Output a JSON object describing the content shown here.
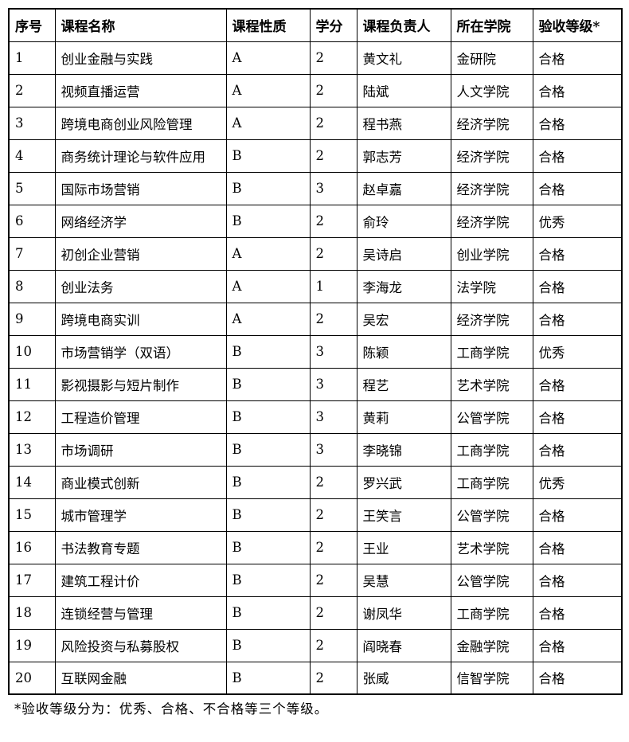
{
  "page": {
    "background_color": "#ffffff",
    "text_color": "#000000",
    "border_color": "#000000"
  },
  "table": {
    "column_keys": [
      "no",
      "name",
      "nature",
      "credits",
      "leader",
      "college",
      "grade"
    ],
    "headers": [
      "序号",
      "课程名称",
      "课程性质",
      "学分",
      "课程负责人",
      "所在学院",
      "验收等级*"
    ],
    "rows": [
      [
        "1",
        "创业金融与实践",
        "A",
        "2",
        "黄文礼",
        "金研院",
        "合格"
      ],
      [
        "2",
        "视频直播运营",
        "A",
        "2",
        "陆斌",
        "人文学院",
        "合格"
      ],
      [
        "3",
        "跨境电商创业风险管理",
        "A",
        "2",
        "程书燕",
        "经济学院",
        "合格"
      ],
      [
        "4",
        "商务统计理论与软件应用",
        "B",
        "2",
        "郭志芳",
        "经济学院",
        "合格"
      ],
      [
        "5",
        "国际市场营销",
        "B",
        "3",
        "赵卓嘉",
        "经济学院",
        "合格"
      ],
      [
        "6",
        "网络经济学",
        "B",
        "2",
        "俞玲",
        "经济学院",
        "优秀"
      ],
      [
        "7",
        "初创企业营销",
        "A",
        "2",
        "吴诗启",
        "创业学院",
        "合格"
      ],
      [
        "8",
        "创业法务",
        "A",
        "1",
        "李海龙",
        "法学院",
        "合格"
      ],
      [
        "9",
        "跨境电商实训",
        "A",
        "2",
        "吴宏",
        "经济学院",
        "合格"
      ],
      [
        "10",
        "市场营销学（双语）",
        "B",
        "3",
        "陈颖",
        "工商学院",
        "优秀"
      ],
      [
        "11",
        "影视摄影与短片制作",
        "B",
        "3",
        "程艺",
        "艺术学院",
        "合格"
      ],
      [
        "12",
        "工程造价管理",
        "B",
        "3",
        "黄莉",
        "公管学院",
        "合格"
      ],
      [
        "13",
        "市场调研",
        "B",
        "3",
        "李晓锦",
        "工商学院",
        "合格"
      ],
      [
        "14",
        "商业模式创新",
        "B",
        "2",
        "罗兴武",
        "工商学院",
        "优秀"
      ],
      [
        "15",
        "城市管理学",
        "B",
        "2",
        "王笑言",
        "公管学院",
        "合格"
      ],
      [
        "16",
        "书法教育专题",
        "B",
        "2",
        "王业",
        "艺术学院",
        "合格"
      ],
      [
        "17",
        "建筑工程计价",
        "B",
        "2",
        "吴慧",
        "公管学院",
        "合格"
      ],
      [
        "18",
        "连锁经营与管理",
        "B",
        "2",
        "谢凤华",
        "工商学院",
        "合格"
      ],
      [
        "19",
        "风险投资与私募股权",
        "B",
        "2",
        "阎晓春",
        "金融学院",
        "合格"
      ],
      [
        "20",
        "互联网金融",
        "B",
        "2",
        "张威",
        "信智学院",
        "合格"
      ]
    ]
  },
  "footnote": "*验收等级分为：优秀、合格、不合格等三个等级。"
}
